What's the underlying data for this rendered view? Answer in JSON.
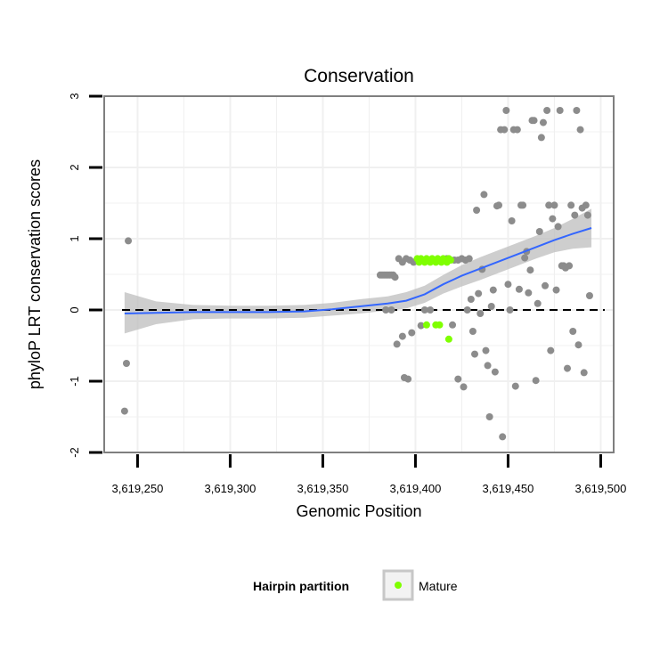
{
  "chart_data": {
    "type": "scatter",
    "title": "Conservation",
    "xlabel": "Genomic Position",
    "ylabel": "phyloP LRT conservation scores",
    "xlim": [
      3619232,
      3619507
    ],
    "ylim": [
      -2,
      3
    ],
    "x_ticks": [
      3619250,
      3619300,
      3619350,
      3619400,
      3619450,
      3619500
    ],
    "x_tick_labels": [
      "3,619,250",
      "3,619,300",
      "3,619,350",
      "3,619,400",
      "3,619,450",
      "3,619,500"
    ],
    "y_ticks": [
      -2,
      -1,
      0,
      1,
      2,
      3
    ],
    "y_tick_labels": [
      "-2",
      "-1",
      "0",
      "1",
      "2",
      "3"
    ],
    "grid": true,
    "reference_line": {
      "y": 0,
      "style": "dashed"
    },
    "legend": {
      "position": "bottom",
      "title": "Hairpin partition",
      "entries": [
        {
          "label": "Mature",
          "color": "#7fff00"
        }
      ]
    },
    "colors": {
      "other_points": "#8c8c8c",
      "mature_points": "#7fff00",
      "smooth_line": "#3366ff",
      "confidence_band": "#bdbdbd",
      "panel_border": "#7f7f7f",
      "grid": "#f0f0f0"
    },
    "series": [
      {
        "name": "Other",
        "color": "#8c8c8c",
        "points": [
          [
            3619245,
            0.97
          ],
          [
            3619244,
            -0.75
          ],
          [
            3619243,
            -1.42
          ],
          [
            3619381,
            0.49
          ],
          [
            3619382,
            0.49
          ],
          [
            3619383,
            0.49
          ],
          [
            3619384,
            0.49
          ],
          [
            3619385,
            0.49
          ],
          [
            3619386,
            0.49
          ],
          [
            3619387,
            0.49
          ],
          [
            3619388,
            0.49
          ],
          [
            3619389,
            0.46
          ],
          [
            3619384,
            0.0
          ],
          [
            3619387,
            0.0
          ],
          [
            3619391,
            0.72
          ],
          [
            3619393,
            0.67
          ],
          [
            3619395,
            0.72
          ],
          [
            3619397,
            0.7
          ],
          [
            3619399,
            0.67
          ],
          [
            3619421,
            0.7
          ],
          [
            3619423,
            0.7
          ],
          [
            3619425,
            0.72
          ],
          [
            3619427,
            0.7
          ],
          [
            3619429,
            0.72
          ],
          [
            3619390,
            -0.48
          ],
          [
            3619393,
            -0.37
          ],
          [
            3619394,
            -0.95
          ],
          [
            3619396,
            -0.97
          ],
          [
            3619398,
            -0.32
          ],
          [
            3619403,
            -0.22
          ],
          [
            3619405,
            0.0
          ],
          [
            3619408,
            0.0
          ],
          [
            3619420,
            -0.21
          ],
          [
            3619423,
            -0.97
          ],
          [
            3619426,
            -1.08
          ],
          [
            3619428,
            0.0
          ],
          [
            3619430,
            0.15
          ],
          [
            3619431,
            -0.3
          ],
          [
            3619432,
            -0.62
          ],
          [
            3619433,
            1.4
          ],
          [
            3619434,
            0.23
          ],
          [
            3619435,
            -0.05
          ],
          [
            3619436,
            0.57
          ],
          [
            3619437,
            1.62
          ],
          [
            3619438,
            -0.57
          ],
          [
            3619439,
            -0.78
          ],
          [
            3619440,
            -1.5
          ],
          [
            3619441,
            0.05
          ],
          [
            3619442,
            0.28
          ],
          [
            3619443,
            -0.87
          ],
          [
            3619444,
            1.46
          ],
          [
            3619445,
            1.47
          ],
          [
            3619446,
            2.53
          ],
          [
            3619447,
            -1.78
          ],
          [
            3619448,
            2.53
          ],
          [
            3619449,
            2.8
          ],
          [
            3619450,
            0.36
          ],
          [
            3619451,
            0.0
          ],
          [
            3619452,
            1.25
          ],
          [
            3619453,
            2.53
          ],
          [
            3619454,
            -1.07
          ],
          [
            3619455,
            2.53
          ],
          [
            3619456,
            0.29
          ],
          [
            3619457,
            1.47
          ],
          [
            3619458,
            1.47
          ],
          [
            3619459,
            0.73
          ],
          [
            3619460,
            0.82
          ],
          [
            3619461,
            0.24
          ],
          [
            3619462,
            0.56
          ],
          [
            3619463,
            2.66
          ],
          [
            3619464,
            2.66
          ],
          [
            3619465,
            -0.99
          ],
          [
            3619466,
            0.09
          ],
          [
            3619467,
            1.1
          ],
          [
            3619468,
            2.42
          ],
          [
            3619469,
            2.63
          ],
          [
            3619470,
            0.34
          ],
          [
            3619471,
            2.8
          ],
          [
            3619472,
            1.47
          ],
          [
            3619473,
            -0.57
          ],
          [
            3619474,
            1.28
          ],
          [
            3619475,
            1.47
          ],
          [
            3619476,
            0.28
          ],
          [
            3619477,
            1.17
          ],
          [
            3619478,
            2.8
          ],
          [
            3619479,
            0.62
          ],
          [
            3619480,
            0.62
          ],
          [
            3619481,
            0.59
          ],
          [
            3619482,
            -0.82
          ],
          [
            3619483,
            0.62
          ],
          [
            3619484,
            1.47
          ],
          [
            3619485,
            -0.3
          ],
          [
            3619486,
            1.33
          ],
          [
            3619487,
            2.8
          ],
          [
            3619488,
            -0.49
          ],
          [
            3619489,
            2.53
          ],
          [
            3619490,
            1.43
          ],
          [
            3619491,
            -0.88
          ],
          [
            3619492,
            1.47
          ],
          [
            3619493,
            1.33
          ],
          [
            3619494,
            0.2
          ],
          [
            3619415,
            0.7
          ],
          [
            3619417,
            0.72
          ]
        ]
      },
      {
        "name": "Mature",
        "color": "#7fff00",
        "points": [
          [
            3619401,
            0.72
          ],
          [
            3619402,
            0.67
          ],
          [
            3619403,
            0.72
          ],
          [
            3619404,
            0.7
          ],
          [
            3619405,
            0.67
          ],
          [
            3619406,
            0.72
          ],
          [
            3619407,
            0.7
          ],
          [
            3619408,
            0.67
          ],
          [
            3619409,
            0.72
          ],
          [
            3619410,
            0.7
          ],
          [
            3619411,
            0.67
          ],
          [
            3619412,
            0.72
          ],
          [
            3619413,
            0.7
          ],
          [
            3619414,
            0.67
          ],
          [
            3619415,
            0.72
          ],
          [
            3619416,
            0.7
          ],
          [
            3619417,
            0.67
          ],
          [
            3619418,
            0.72
          ],
          [
            3619419,
            0.7
          ],
          [
            3619406,
            -0.21
          ],
          [
            3619411,
            -0.21
          ],
          [
            3619413,
            -0.21
          ],
          [
            3619418,
            -0.41
          ]
        ]
      }
    ],
    "smooth": {
      "method": "loess",
      "line": [
        [
          3619243,
          -0.05
        ],
        [
          3619260,
          -0.04
        ],
        [
          3619280,
          -0.03
        ],
        [
          3619300,
          -0.03
        ],
        [
          3619320,
          -0.03
        ],
        [
          3619340,
          -0.02
        ],
        [
          3619355,
          0.01
        ],
        [
          3619370,
          0.05
        ],
        [
          3619385,
          0.09
        ],
        [
          3619395,
          0.13
        ],
        [
          3619405,
          0.22
        ],
        [
          3619415,
          0.36
        ],
        [
          3619425,
          0.48
        ],
        [
          3619435,
          0.58
        ],
        [
          3619445,
          0.68
        ],
        [
          3619455,
          0.78
        ],
        [
          3619465,
          0.88
        ],
        [
          3619475,
          0.98
        ],
        [
          3619485,
          1.07
        ],
        [
          3619495,
          1.15
        ]
      ],
      "upper": [
        [
          3619243,
          0.25
        ],
        [
          3619260,
          0.12
        ],
        [
          3619280,
          0.07
        ],
        [
          3619300,
          0.06
        ],
        [
          3619320,
          0.06
        ],
        [
          3619340,
          0.07
        ],
        [
          3619355,
          0.1
        ],
        [
          3619370,
          0.15
        ],
        [
          3619385,
          0.19
        ],
        [
          3619395,
          0.25
        ],
        [
          3619405,
          0.34
        ],
        [
          3619415,
          0.49
        ],
        [
          3619425,
          0.63
        ],
        [
          3619435,
          0.74
        ],
        [
          3619445,
          0.84
        ],
        [
          3619455,
          0.94
        ],
        [
          3619465,
          1.04
        ],
        [
          3619475,
          1.15
        ],
        [
          3619485,
          1.28
        ],
        [
          3619495,
          1.42
        ]
      ],
      "lower": [
        [
          3619243,
          -0.33
        ],
        [
          3619260,
          -0.2
        ],
        [
          3619280,
          -0.13
        ],
        [
          3619300,
          -0.12
        ],
        [
          3619320,
          -0.12
        ],
        [
          3619340,
          -0.11
        ],
        [
          3619355,
          -0.08
        ],
        [
          3619370,
          -0.05
        ],
        [
          3619385,
          -0.01
        ],
        [
          3619395,
          0.02
        ],
        [
          3619405,
          0.1
        ],
        [
          3619415,
          0.23
        ],
        [
          3619425,
          0.33
        ],
        [
          3619435,
          0.42
        ],
        [
          3619445,
          0.52
        ],
        [
          3619455,
          0.62
        ],
        [
          3619465,
          0.72
        ],
        [
          3619475,
          0.81
        ],
        [
          3619485,
          0.86
        ],
        [
          3619495,
          0.88
        ]
      ]
    }
  }
}
